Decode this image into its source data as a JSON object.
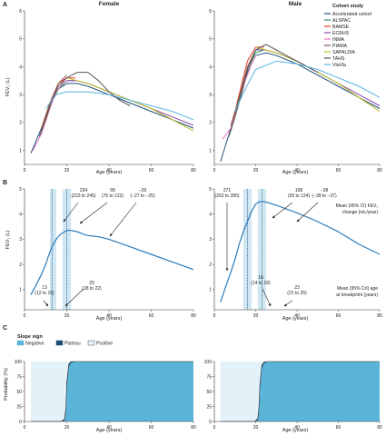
{
  "figure": {
    "panel_labels": [
      "A",
      "B",
      "C"
    ],
    "panel_a_titles": [
      "Female",
      "Male"
    ],
    "ylabel_a": "FEV₁ (L)",
    "ylabel_b": "FEV₁ (L)",
    "ylabel_c": "Probability (%)",
    "xlabel": "Age (years)",
    "legend_title": "Cohort study",
    "slope_legend_title": "Slope sign",
    "male_annot_top": [
      "Mean (95% CI) FEV₁",
      "change (mL/year)"
    ],
    "male_annot_bottom": [
      "Mean (95% CrI) age",
      "at breakpoint (years)"
    ]
  },
  "colors": {
    "cohorts": [
      "#1f4e79",
      "#2ca05a",
      "#e63b2e",
      "#8e44ad",
      "#e377c2",
      "#8c564b",
      "#bcbd22",
      "#555555",
      "#5ab4e0"
    ],
    "fev_curve": "#2b7bba",
    "band": "#cfe6f3",
    "negative": "#5ab4d8",
    "plateau": "#1f4e79",
    "positive": "#e3f1f9"
  },
  "chart_data": [
    {
      "panel": "A",
      "title": "Female",
      "type": "line",
      "xlabel": "Age (years)",
      "ylabel": "FEV₁ (L)",
      "xlim": [
        0,
        80
      ],
      "ylim": [
        0.5,
        6
      ],
      "xticks": [
        0,
        20,
        40,
        60,
        80
      ],
      "yticks": [
        1,
        2,
        3,
        4,
        5,
        6
      ],
      "series": [
        {
          "name": "Accelerated cohort",
          "x": [
            3,
            8,
            12,
            16,
            20,
            25,
            30,
            40,
            50,
            60,
            70,
            80
          ],
          "y": [
            0.9,
            1.8,
            2.6,
            3.2,
            3.4,
            3.4,
            3.3,
            3.0,
            2.7,
            2.4,
            2.1,
            1.8
          ]
        },
        {
          "name": "ALSPAC",
          "x": [
            8,
            12,
            16,
            20,
            24
          ],
          "y": [
            1.6,
            2.6,
            3.2,
            3.5,
            3.5
          ]
        },
        {
          "name": "BAMSE",
          "x": [
            8,
            12,
            16,
            20,
            24
          ],
          "y": [
            1.7,
            2.7,
            3.4,
            3.6,
            3.6
          ]
        },
        {
          "name": "ECRHS",
          "x": [
            20,
            25,
            30,
            40,
            50,
            60,
            70,
            80
          ],
          "y": [
            3.5,
            3.5,
            3.4,
            3.1,
            2.8,
            2.5,
            2.2,
            1.9
          ]
        },
        {
          "name": "INMA",
          "x": [
            4,
            8,
            12,
            15,
            18,
            20
          ],
          "y": [
            1.0,
            1.6,
            2.5,
            3.1,
            3.4,
            3.5
          ]
        },
        {
          "name": "PIAMA",
          "x": [
            8,
            12,
            16,
            20
          ],
          "y": [
            1.8,
            2.7,
            3.4,
            3.7
          ]
        },
        {
          "name": "SAPALDIA",
          "x": [
            20,
            25,
            30,
            40,
            50,
            60,
            70,
            80
          ],
          "y": [
            3.6,
            3.5,
            3.4,
            3.1,
            2.8,
            2.5,
            2.1,
            1.7
          ]
        },
        {
          "name": "TAHS",
          "x": [
            7,
            10,
            13,
            16,
            20,
            25,
            30,
            35,
            40,
            45,
            50
          ],
          "y": [
            1.5,
            2.1,
            2.8,
            3.3,
            3.6,
            3.8,
            3.8,
            3.5,
            3.1,
            2.8,
            2.6
          ]
        },
        {
          "name": "VlaVla",
          "x": [
            10,
            15,
            20,
            30,
            40,
            50,
            60,
            70,
            80
          ],
          "y": [
            2.5,
            3.0,
            3.1,
            3.1,
            3.0,
            2.8,
            2.6,
            2.4,
            2.1
          ]
        }
      ]
    },
    {
      "panel": "A",
      "title": "Male",
      "type": "line",
      "xlabel": "Age (years)",
      "ylabel": "",
      "xlim": [
        0,
        80
      ],
      "ylim": [
        0.5,
        6
      ],
      "xticks": [
        0,
        20,
        40,
        60,
        80
      ],
      "yticks": [
        1,
        2,
        3,
        4,
        5,
        6
      ],
      "series": [
        {
          "name": "Accelerated cohort",
          "x": [
            3,
            8,
            12,
            16,
            20,
            25,
            30,
            40,
            50,
            60,
            70,
            80
          ],
          "y": [
            0.6,
            1.8,
            2.8,
            3.8,
            4.4,
            4.5,
            4.4,
            4.1,
            3.7,
            3.3,
            2.9,
            2.5
          ]
        },
        {
          "name": "ALSPAC",
          "x": [
            8,
            12,
            16,
            20,
            24
          ],
          "y": [
            1.7,
            2.8,
            3.9,
            4.5,
            4.6
          ]
        },
        {
          "name": "BAMSE",
          "x": [
            8,
            12,
            16,
            20,
            24
          ],
          "y": [
            1.8,
            3.0,
            4.2,
            4.7,
            4.7
          ]
        },
        {
          "name": "ECRHS",
          "x": [
            20,
            25,
            30,
            40,
            50,
            60,
            70,
            80
          ],
          "y": [
            4.6,
            4.6,
            4.5,
            4.2,
            3.8,
            3.4,
            3.0,
            2.6
          ]
        },
        {
          "name": "INMA",
          "x": [
            4,
            8,
            12,
            15,
            18,
            20
          ],
          "y": [
            1.4,
            1.8,
            2.7,
            3.5,
            4.1,
            4.4
          ]
        },
        {
          "name": "PIAMA",
          "x": [
            8,
            12,
            16,
            20
          ],
          "y": [
            1.9,
            2.9,
            4.0,
            4.6
          ]
        },
        {
          "name": "SAPALDIA",
          "x": [
            20,
            25,
            30,
            40,
            50,
            60,
            70,
            80
          ],
          "y": [
            4.7,
            4.6,
            4.5,
            4.2,
            3.8,
            3.4,
            2.9,
            2.4
          ]
        },
        {
          "name": "TAHS",
          "x": [
            7,
            10,
            13,
            16,
            20,
            25,
            30,
            35,
            40,
            45,
            50
          ],
          "y": [
            1.5,
            2.2,
            3.0,
            3.9,
            4.6,
            4.8,
            4.6,
            4.4,
            4.2,
            4.0,
            3.8
          ]
        },
        {
          "name": "VlaVla",
          "x": [
            10,
            15,
            20,
            30,
            40,
            50,
            60,
            70,
            80
          ],
          "y": [
            2.4,
            3.2,
            3.9,
            4.2,
            4.1,
            3.9,
            3.6,
            3.3,
            2.9
          ]
        }
      ]
    },
    {
      "panel": "B",
      "title": "",
      "type": "line",
      "xlabel": "Age (years)",
      "ylabel": "FEV₁ (L)",
      "xlim": [
        0,
        80
      ],
      "ylim": [
        0.2,
        5
      ],
      "xticks": [
        0,
        20,
        40,
        60,
        80
      ],
      "yticks": [
        1,
        2,
        3,
        4,
        5
      ],
      "x": [
        3,
        5,
        8,
        10,
        12,
        13,
        15,
        17,
        19,
        20,
        22,
        25,
        28,
        30,
        35,
        40,
        50,
        60,
        70,
        80
      ],
      "y": [
        0.8,
        1.1,
        1.6,
        2.0,
        2.5,
        2.7,
        3.0,
        3.2,
        3.3,
        3.35,
        3.35,
        3.3,
        3.2,
        3.15,
        3.1,
        3.0,
        2.7,
        2.4,
        2.1,
        1.8
      ],
      "breakpoints": [
        {
          "age": 13,
          "ci_low": 12,
          "ci_high": 15
        },
        {
          "age": 20,
          "ci_low": 18,
          "ci_high": 22
        }
      ],
      "annotations": [
        {
          "rate": "234",
          "ci": "(223 to 245)"
        },
        {
          "rate": "99",
          "ci": "(76 to 122)"
        },
        {
          "rate": "−26",
          "ci": "(−27 to −25)"
        },
        {
          "age": "13",
          "ci": "(12 to 15)"
        },
        {
          "age": "20",
          "ci": "(18 to 22)"
        }
      ]
    },
    {
      "panel": "B",
      "title": "",
      "type": "line",
      "xlabel": "Age (years)",
      "ylabel": "",
      "xlim": [
        0,
        80
      ],
      "ylim": [
        0.2,
        5
      ],
      "xticks": [
        0,
        20,
        40,
        60,
        80
      ],
      "yticks": [
        1,
        2,
        3,
        4,
        5
      ],
      "x": [
        3,
        5,
        8,
        10,
        12,
        14,
        16,
        18,
        20,
        22,
        24,
        26,
        28,
        30,
        35,
        40,
        50,
        60,
        70,
        80
      ],
      "y": [
        0.5,
        1.0,
        1.7,
        2.2,
        2.8,
        3.3,
        3.7,
        4.1,
        4.4,
        4.5,
        4.5,
        4.45,
        4.4,
        4.35,
        4.2,
        4.05,
        3.7,
        3.3,
        2.8,
        2.4
      ],
      "breakpoints": [
        {
          "age": 16,
          "ci_low": 14,
          "ci_high": 18
        },
        {
          "age": 23,
          "ci_low": 21,
          "ci_high": 25
        }
      ],
      "annotations": [
        {
          "rate": "271",
          "ci": "(262 to 280)"
        },
        {
          "rate": "108",
          "ci": "(93 to 124)"
        },
        {
          "rate": "−38",
          "ci": "(−39 to −37)"
        },
        {
          "age": "16",
          "ci": "(14 to 18)"
        },
        {
          "age": "23",
          "ci": "(21 to 25)"
        }
      ]
    },
    {
      "panel": "C",
      "type": "area",
      "xlabel": "Age (years)",
      "ylabel": "Probability (%)",
      "xlim": [
        0,
        80
      ],
      "ylim": [
        0,
        100
      ],
      "xticks": [
        0,
        20,
        40,
        60,
        80
      ],
      "yticks": [
        0,
        25,
        50,
        75,
        100
      ],
      "legend": [
        "Negative",
        "Plateau",
        "Positive"
      ],
      "x": [
        3,
        15,
        17,
        18,
        19,
        19.6,
        20,
        21,
        22,
        25,
        30,
        40,
        50,
        60,
        70,
        80
      ],
      "negative": [
        0,
        0,
        0,
        0,
        2,
        15,
        55,
        90,
        98,
        100,
        100,
        100,
        100,
        100,
        100,
        100
      ],
      "plateau": [
        0,
        0,
        0,
        1,
        3,
        8,
        10,
        6,
        2,
        0,
        0,
        0,
        0,
        0,
        0,
        0
      ]
    },
    {
      "panel": "C",
      "type": "area",
      "xlabel": "Age (years)",
      "ylabel": "",
      "xlim": [
        0,
        80
      ],
      "ylim": [
        0,
        100
      ],
      "xticks": [
        0,
        20,
        40,
        60,
        80
      ],
      "yticks": [
        0,
        25,
        50,
        75,
        100
      ],
      "legend": [
        "Negative",
        "Plateau",
        "Positive"
      ],
      "x": [
        3,
        18,
        19,
        20,
        21,
        21.6,
        22,
        23,
        24,
        26,
        30,
        40,
        50,
        60,
        70,
        80
      ],
      "negative": [
        0,
        0,
        0,
        0,
        2,
        15,
        50,
        88,
        97,
        100,
        100,
        100,
        100,
        100,
        100,
        100
      ],
      "plateau": [
        0,
        0,
        0,
        1,
        3,
        8,
        10,
        6,
        2,
        0,
        0,
        0,
        0,
        0,
        0,
        0
      ]
    }
  ]
}
